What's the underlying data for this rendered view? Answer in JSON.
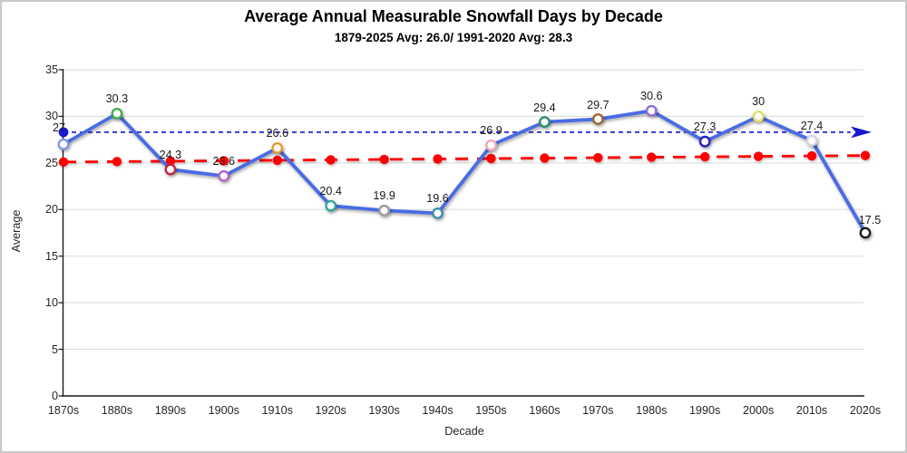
{
  "chart_data": {
    "type": "line",
    "title": "Average Annual Measurable Snowfall Days by Decade",
    "subtitle": "1879-2025 Avg: 26.0/ 1991-2020 Avg: 28.3",
    "xlabel": "Decade",
    "ylabel": "Average",
    "categories": [
      "1870s",
      "1880s",
      "1890s",
      "1900s",
      "1910s",
      "1920s",
      "1930s",
      "1940s",
      "1950s",
      "1960s",
      "1970s",
      "1980s",
      "1990s",
      "2000s",
      "2010s",
      "2020s"
    ],
    "values": [
      27,
      30.3,
      24.3,
      23.6,
      26.6,
      20.4,
      19.9,
      19.6,
      26.9,
      29.4,
      29.7,
      30.6,
      27.3,
      30,
      27.4,
      17.5
    ],
    "point_colors": [
      "#7d9be8",
      "#3fae49",
      "#c22845",
      "#b75fc6",
      "#e39b33",
      "#33a695",
      "#9d9d9d",
      "#3e8fa8",
      "#f0a9b8",
      "#2f8c72",
      "#9a6530",
      "#8e6fd3",
      "#2724c7",
      "#e3df6b",
      "#d4d4de",
      "#1a1a1a"
    ],
    "series_color": "#4a6ce3",
    "ylim": [
      0,
      35
    ],
    "yticks": [
      0,
      5,
      10,
      15,
      20,
      25,
      30,
      35
    ],
    "grid": "horizontal",
    "legend": "none",
    "trendline": {
      "name": "linear-trend",
      "style": "dashed",
      "color": "#ff0000",
      "start": 25.1,
      "end": 25.8,
      "markers": true
    },
    "reference_line": {
      "name": "1991-2020-average",
      "style": "dashed",
      "color": "#1818cf",
      "value": 28.3,
      "marker_start": true,
      "arrow_end": true
    },
    "axis_color": "#1a1a1a",
    "grid_color": "#dadada"
  }
}
